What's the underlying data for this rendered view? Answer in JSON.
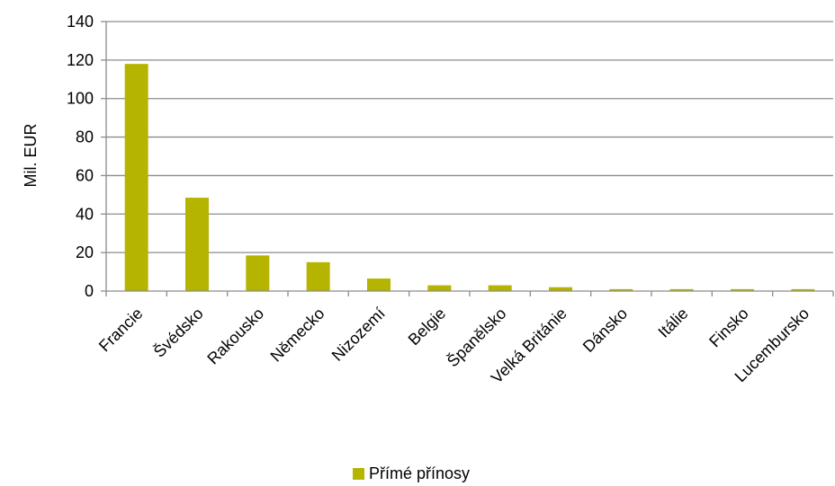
{
  "chart_data": {
    "type": "bar",
    "categories": [
      "Francie",
      "Švédsko",
      "Rakousko",
      "Německo",
      "Nizozemí",
      "Belgie",
      "Španělsko",
      "Velká Británie",
      "Dánsko",
      "Itálie",
      "Finsko",
      "Lucembursko"
    ],
    "series": [
      {
        "name": "Přímé přínosy",
        "values": [
          118,
          48.5,
          18.5,
          15,
          6.5,
          3,
          3,
          2,
          1,
          1,
          1,
          1
        ]
      }
    ],
    "ylabel": "Mil. EUR",
    "xlabel": "",
    "ylim": [
      0,
      140
    ],
    "yticks": [
      0,
      20,
      40,
      60,
      80,
      100,
      120,
      140
    ],
    "grid": true,
    "legend_position": "bottom",
    "colors": {
      "bar": "#b5b400",
      "grid": "#8c8c8c",
      "axis": "#8c8c8c"
    }
  }
}
